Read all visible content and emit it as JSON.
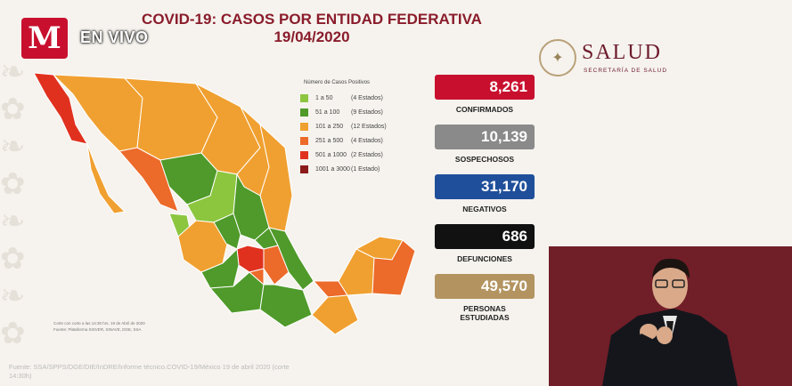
{
  "broadcast": {
    "logo_letter": "M",
    "live_label": "EN VIVO"
  },
  "header": {
    "title_line1": "COVID-19: CASOS POR ENTIDAD FEDERATIVA",
    "title_line2": "19/04/2020"
  },
  "brand": {
    "name": "SALUD",
    "subtitle": "SECRETARÍA DE SALUD"
  },
  "legend": {
    "title": "Número de Casos Positivos",
    "items": [
      {
        "range": "1 a 50",
        "count": "(4 Estados)",
        "color": "#8cc63f"
      },
      {
        "range": "51 a 100",
        "count": "(9 Estados)",
        "color": "#4f9a2a"
      },
      {
        "range": "101 a 250",
        "count": "(12 Estados)",
        "color": "#f0a030"
      },
      {
        "range": "251 a 500",
        "count": "(4 Estados)",
        "color": "#ec6a2a"
      },
      {
        "range": "501 a 1000",
        "count": "(2 Estados)",
        "color": "#e0311f"
      },
      {
        "range": "1001 a 3000",
        "count": "(1 Estado)",
        "color": "#8b1a1a"
      }
    ]
  },
  "stats": [
    {
      "value": "8,261",
      "label": "CONFIRMADOS",
      "color": "#c8102e"
    },
    {
      "value": "10,139",
      "label": "SOSPECHOSOS",
      "color": "#8a8a8a"
    },
    {
      "value": "31,170",
      "label": "NEGATIVOS",
      "color": "#1f4f9a"
    },
    {
      "value": "686",
      "label": "DEFUNCIONES",
      "color": "#111111"
    },
    {
      "value": "49,570",
      "label": "PERSONAS ESTUDIADAS",
      "color": "#b39461"
    }
  ],
  "notes": {
    "line1": "Corte con corte a las 14:30 hrs. 19 de Abril de 2020",
    "line2": "Fuente: Plataforma SISVER, SINAVE, DGE, SSA"
  },
  "source": "Fuente: SSA/SPPS/DGE/DIE/InDRE/Informe técnico.COVID-19/México 19 de abril 2020 (corte 14:30h)"
}
